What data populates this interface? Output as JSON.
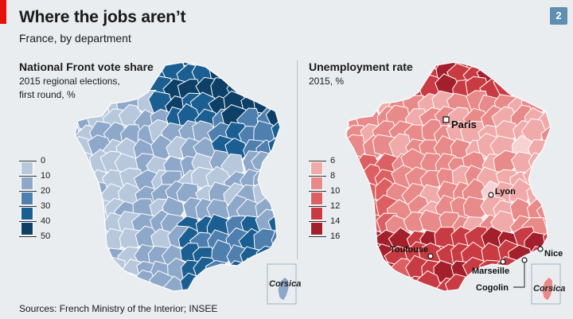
{
  "header": {
    "title": "Where the jobs aren’t",
    "subtitle": "France, by department",
    "badge": "2"
  },
  "left_panel": {
    "title": "National Front vote share",
    "sub1": "2015 regional elections,",
    "sub2": "first round, %",
    "legend_ticks": [
      "0",
      "10",
      "20",
      "30",
      "40",
      "50"
    ],
    "legend_colors": [
      "#dfe6ef",
      "#b7c8dd",
      "#8ea8c9",
      "#4f7fae",
      "#1b5f92",
      "#0e3f66"
    ],
    "inset_label": "Corsica"
  },
  "right_panel": {
    "title": "Unemployment rate",
    "sub1": "2015, %",
    "legend_ticks": [
      "6",
      "8",
      "10",
      "12",
      "14",
      "16"
    ],
    "legend_colors": [
      "#f6d3d2",
      "#f0aaa9",
      "#e88a89",
      "#dc5f62",
      "#c93b42",
      "#a31f2c"
    ],
    "cities": {
      "paris": "Paris",
      "lyon": "Lyon",
      "toulouse": "Toulouse",
      "marseille": "Marseille",
      "nice": "Nice",
      "cogolin": "Cogolin"
    },
    "inset_label": "Corsica"
  },
  "footer": {
    "source": "Sources: French Ministry of the Interior; INSEE"
  }
}
